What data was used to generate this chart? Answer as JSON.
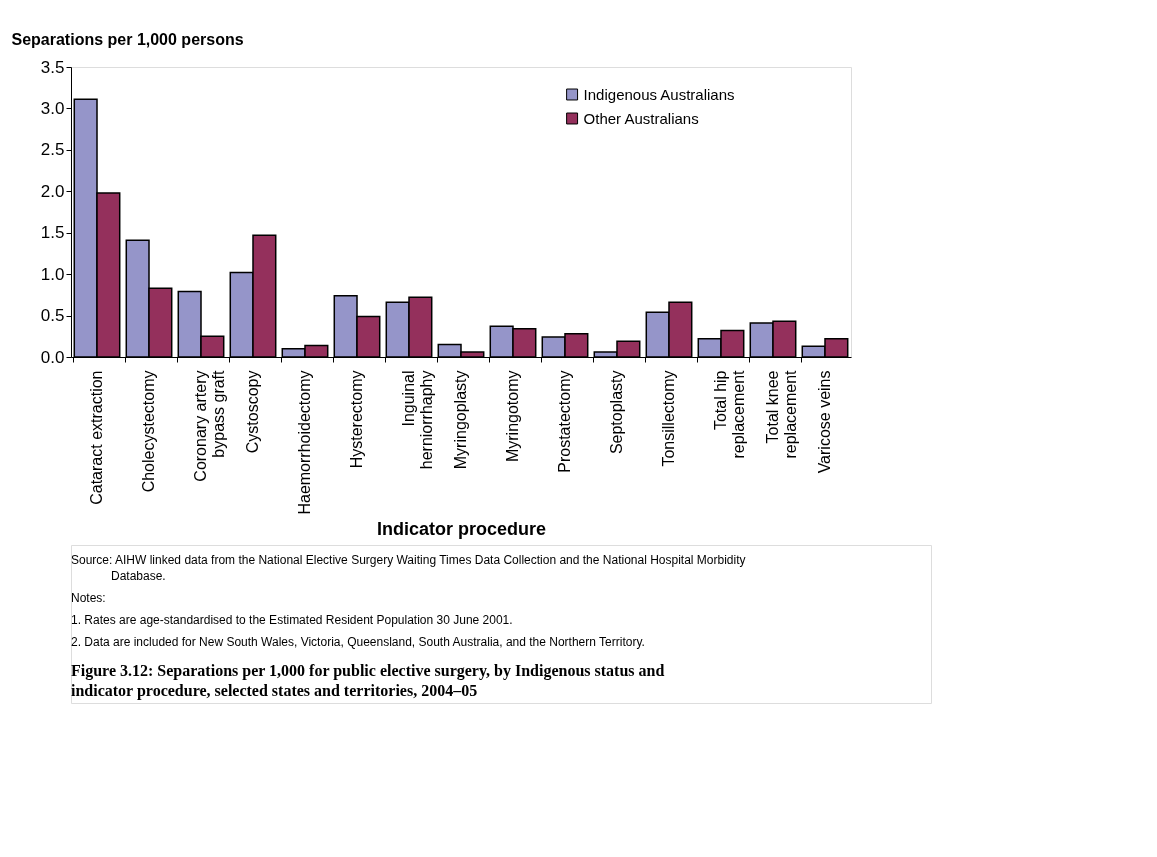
{
  "chart_data": {
    "type": "bar",
    "title": "Figure 3.12: Separations per 1,000 for public elective surgery, by Indigenous status and indicator procedure, selected states and territories, 2004–05",
    "ylabel": "Separations per 1,000 persons",
    "xlabel": "Indicator procedure",
    "categories": [
      "Cataract extraction",
      "Cholecystectomy",
      "Coronary artery bypass graft",
      "Cystoscopy",
      "Haemorrhoidectomy",
      "Hysterectomy",
      "Inguinal herniorrhaphy",
      "Myringoplasty",
      "Myringotomy",
      "Prostatectomy",
      "Septoplasty",
      "Tonsillectomy",
      "Total hip replacement",
      "Total knee replacement",
      "Varicose veins"
    ],
    "series": [
      {
        "name": "Indigenous Australians",
        "color": "#9595c9",
        "values": [
          3.11,
          1.41,
          0.79,
          1.02,
          0.1,
          0.74,
          0.66,
          0.15,
          0.37,
          0.24,
          0.06,
          0.54,
          0.22,
          0.41,
          0.13
        ]
      },
      {
        "name": "Other Australians",
        "color": "#94305c",
        "values": [
          1.98,
          0.83,
          0.25,
          1.47,
          0.14,
          0.49,
          0.72,
          0.06,
          0.34,
          0.28,
          0.19,
          0.66,
          0.32,
          0.43,
          0.22
        ]
      }
    ],
    "ylim": [
      0,
      3.5
    ],
    "yticks": [
      {
        "value": 0,
        "label": "0.0"
      },
      {
        "value": 0.5,
        "label": "0.5"
      },
      {
        "value": 1,
        "label": "1.0"
      },
      {
        "value": 1.5,
        "label": "1.5"
      },
      {
        "value": 2,
        "label": "2.0"
      },
      {
        "value": 2.5,
        "label": "2.5"
      },
      {
        "value": 3,
        "label": "3.0"
      },
      {
        "value": 3.5,
        "label": "3.5"
      }
    ],
    "grid": false,
    "legend": "top right",
    "annotations": [
      "Source: AIHW linked data from the National Elective Surgery Waiting Times Data Collection and the National Hospital Morbidity Database.",
      "Notes:",
      "1. Rates are age-standardised to the Estimated Resident Population 30 June 2001.",
      "2. Data are included for New South Wales, Victoria, Queensland, South Australia, and the Northern Territory."
    ]
  }
}
